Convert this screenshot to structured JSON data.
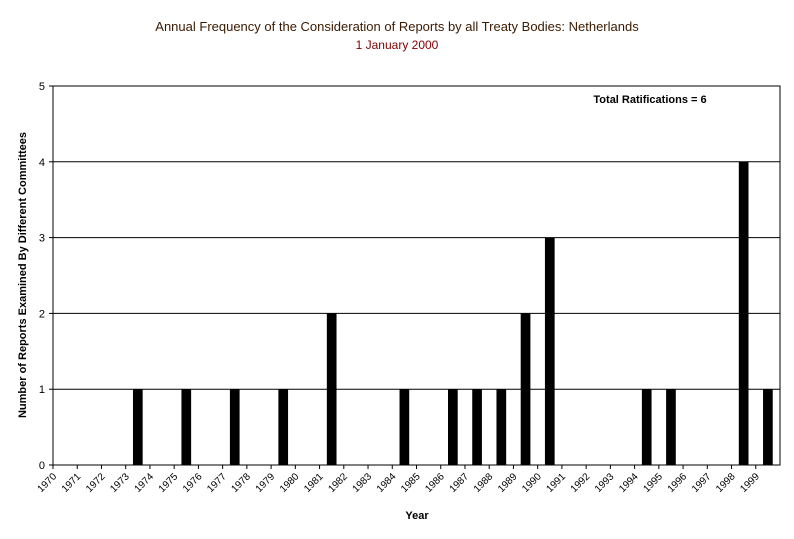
{
  "chart_data": {
    "type": "bar",
    "title": "Annual Frequency of the Consideration of Reports by all Treaty Bodies: Netherlands",
    "subtitle": "1 January 2000",
    "annotation": "Total Ratifications = 6",
    "x_label": "Year",
    "y_label": "Number of Reports Examined By Different Committees",
    "categories": [
      "1970",
      "1971",
      "1972",
      "1973",
      "1974",
      "1975",
      "1976",
      "1977",
      "1978",
      "1979",
      "1980",
      "1981",
      "1982",
      "1983",
      "1984",
      "1985",
      "1986",
      "1987",
      "1988",
      "1989",
      "1990",
      "1991",
      "1992",
      "1993",
      "1994",
      "1995",
      "1996",
      "1997",
      "1998",
      "1999"
    ],
    "values": [
      0,
      0,
      0,
      1,
      0,
      1,
      0,
      1,
      0,
      1,
      0,
      2,
      0,
      0,
      1,
      0,
      1,
      1,
      1,
      2,
      3,
      0,
      0,
      0,
      1,
      1,
      0,
      0,
      4,
      1
    ],
    "color": "#000000",
    "ylim": [
      0,
      5
    ],
    "yticks": [
      0,
      1,
      2,
      3,
      4,
      5
    ],
    "grid": true
  }
}
